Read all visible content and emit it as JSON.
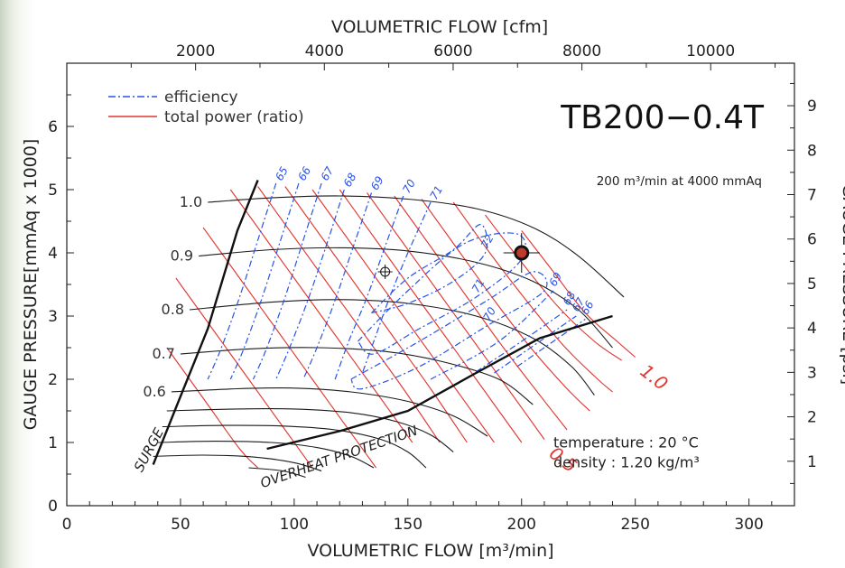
{
  "chart_data": {
    "type": "line",
    "title": "TB200−0.4T",
    "rating_note": "200 m³/min at 4000 mmAq",
    "conditions": [
      "temperature : 20 °C",
      "density : 1.20 kg/m³"
    ],
    "x_bottom": {
      "label": "VOLUMETRIC FLOW [m³/min]",
      "range": [
        0,
        320
      ],
      "ticks": [
        0,
        50,
        100,
        150,
        200,
        250,
        300
      ]
    },
    "x_top": {
      "label": "VOLUMETRIC FLOW [cfm]",
      "ticks": [
        2000,
        4000,
        6000,
        8000,
        10000
      ]
    },
    "y_left": {
      "label": "GAUGE PRESSURE[mmAq x 1000]",
      "range": [
        0,
        7
      ],
      "ticks": [
        0,
        1,
        2,
        3,
        4,
        5,
        6
      ]
    },
    "y_right": {
      "label": "GAUGE PRESSURE [psi]",
      "ticks": [
        1,
        2,
        3,
        4,
        5,
        6,
        7,
        8,
        9
      ]
    },
    "legend": [
      {
        "label": "efficiency",
        "color": "#2952e8",
        "style": "dash-dot"
      },
      {
        "label": "total power (ratio)",
        "color": "#e0352e",
        "style": "solid"
      }
    ],
    "speed_curves": [
      {
        "label": "1.0",
        "points": [
          [
            62,
            4.8
          ],
          [
            90,
            4.87
          ],
          [
            120,
            4.9
          ],
          [
            150,
            4.85
          ],
          [
            180,
            4.7
          ],
          [
            205,
            4.4
          ],
          [
            225,
            3.95
          ],
          [
            245,
            3.3
          ]
        ]
      },
      {
        "label": "0.9",
        "points": [
          [
            58,
            3.95
          ],
          [
            90,
            4.05
          ],
          [
            120,
            4.08
          ],
          [
            150,
            4.03
          ],
          [
            180,
            3.85
          ],
          [
            205,
            3.55
          ],
          [
            225,
            3.1
          ],
          [
            240,
            2.5
          ]
        ]
      },
      {
        "label": "0.8",
        "points": [
          [
            54,
            3.1
          ],
          [
            90,
            3.22
          ],
          [
            120,
            3.26
          ],
          [
            150,
            3.2
          ],
          [
            180,
            3.0
          ],
          [
            205,
            2.65
          ],
          [
            222,
            2.2
          ],
          [
            232,
            1.75
          ]
        ]
      },
      {
        "label": "0.7",
        "points": [
          [
            50,
            2.4
          ],
          [
            80,
            2.48
          ],
          [
            110,
            2.5
          ],
          [
            140,
            2.44
          ],
          [
            165,
            2.28
          ],
          [
            190,
            2.0
          ],
          [
            205,
            1.6
          ]
        ]
      },
      {
        "label": "0.6",
        "points": [
          [
            46,
            1.8
          ],
          [
            75,
            1.85
          ],
          [
            100,
            1.86
          ],
          [
            125,
            1.8
          ],
          [
            150,
            1.65
          ],
          [
            170,
            1.42
          ],
          [
            185,
            1.1
          ]
        ]
      },
      {
        "label": "",
        "points": [
          [
            44,
            1.5
          ],
          [
            75,
            1.53
          ],
          [
            100,
            1.53
          ],
          [
            125,
            1.47
          ],
          [
            145,
            1.33
          ],
          [
            160,
            1.12
          ],
          [
            170,
            0.85
          ]
        ]
      },
      {
        "label": "",
        "points": [
          [
            42,
            1.25
          ],
          [
            70,
            1.27
          ],
          [
            95,
            1.26
          ],
          [
            118,
            1.2
          ],
          [
            138,
            1.05
          ],
          [
            150,
            0.85
          ],
          [
            158,
            0.6
          ]
        ]
      },
      {
        "label": "",
        "points": [
          [
            40,
            1.0
          ],
          [
            65,
            1.02
          ],
          [
            90,
            1.0
          ],
          [
            110,
            0.92
          ],
          [
            125,
            0.78
          ],
          [
            135,
            0.6
          ]
        ]
      },
      {
        "label": "",
        "points": [
          [
            38,
            0.78
          ],
          [
            60,
            0.8
          ],
          [
            82,
            0.77
          ],
          [
            100,
            0.68
          ],
          [
            112,
            0.55
          ]
        ]
      },
      {
        "label": "",
        "points": [
          [
            80,
            0.6
          ],
          [
            95,
            0.55
          ],
          [
            105,
            0.45
          ]
        ]
      }
    ],
    "power_ratio_lines": [
      {
        "label": "",
        "points": [
          [
            72,
            5.0
          ],
          [
            88,
            4.2
          ],
          [
            104,
            3.4
          ],
          [
            120,
            2.6
          ],
          [
            136,
            1.8
          ],
          [
            152,
            1.0
          ]
        ]
      },
      {
        "label": "",
        "points": [
          [
            84,
            5.05
          ],
          [
            100,
            4.25
          ],
          [
            116,
            3.45
          ],
          [
            132,
            2.65
          ],
          [
            148,
            1.85
          ],
          [
            164,
            1.0
          ]
        ]
      },
      {
        "label": "",
        "points": [
          [
            96,
            5.05
          ],
          [
            112,
            4.25
          ],
          [
            128,
            3.45
          ],
          [
            144,
            2.65
          ],
          [
            160,
            1.85
          ],
          [
            176,
            1.0
          ]
        ]
      },
      {
        "label": "",
        "points": [
          [
            108,
            5.0
          ],
          [
            124,
            4.2
          ],
          [
            140,
            3.4
          ],
          [
            156,
            2.6
          ],
          [
            172,
            1.8
          ],
          [
            188,
            1.0
          ]
        ]
      },
      {
        "label": "",
        "points": [
          [
            120,
            5.0
          ],
          [
            136,
            4.2
          ],
          [
            152,
            3.4
          ],
          [
            168,
            2.6
          ],
          [
            184,
            1.8
          ],
          [
            200,
            1.0
          ]
        ]
      },
      {
        "label": "0.5",
        "points": [
          [
            132,
            4.95
          ],
          [
            148,
            4.15
          ],
          [
            164,
            3.35
          ],
          [
            180,
            2.55
          ],
          [
            196,
            1.75
          ],
          [
            210,
            1.05
          ]
        ]
      },
      {
        "label": "",
        "points": [
          [
            144,
            4.9
          ],
          [
            160,
            4.1
          ],
          [
            176,
            3.3
          ],
          [
            192,
            2.5
          ],
          [
            208,
            1.75
          ],
          [
            220,
            1.2
          ]
        ]
      },
      {
        "label": "",
        "points": [
          [
            156,
            4.85
          ],
          [
            172,
            4.05
          ],
          [
            188,
            3.25
          ],
          [
            204,
            2.5
          ],
          [
            220,
            1.85
          ],
          [
            230,
            1.5
          ]
        ]
      },
      {
        "label": "",
        "points": [
          [
            170,
            4.8
          ],
          [
            186,
            4.0
          ],
          [
            202,
            3.25
          ],
          [
            218,
            2.55
          ],
          [
            232,
            2.05
          ],
          [
            240,
            1.8
          ]
        ]
      },
      {
        "label": "",
        "points": [
          [
            184,
            4.6
          ],
          [
            200,
            3.85
          ],
          [
            216,
            3.15
          ],
          [
            232,
            2.6
          ],
          [
            244,
            2.3
          ]
        ]
      },
      {
        "label": "1.0",
        "points": [
          [
            200,
            4.35
          ],
          [
            214,
            3.7
          ],
          [
            228,
            3.05
          ],
          [
            242,
            2.6
          ],
          [
            250,
            2.35
          ]
        ]
      },
      {
        "label": "",
        "points": [
          [
            60,
            4.4
          ],
          [
            76,
            3.6
          ],
          [
            92,
            2.8
          ],
          [
            108,
            2.0
          ],
          [
            124,
            1.2
          ],
          [
            136,
            0.6
          ]
        ]
      },
      {
        "label": "",
        "points": [
          [
            48,
            3.6
          ],
          [
            64,
            2.8
          ],
          [
            80,
            2.0
          ],
          [
            96,
            1.2
          ],
          [
            108,
            0.6
          ]
        ]
      },
      {
        "label": "",
        "points": [
          [
            44,
            2.5
          ],
          [
            60,
            1.7
          ],
          [
            76,
            0.9
          ],
          [
            84,
            0.6
          ]
        ]
      }
    ],
    "efficiency_curves": [
      {
        "label": "65",
        "points": [
          [
            92,
            5.1
          ],
          [
            84,
            4.2
          ],
          [
            76,
            3.3
          ],
          [
            68,
            2.5
          ],
          [
            62,
            2.0
          ]
        ]
      },
      {
        "label": "66",
        "points": [
          [
            102,
            5.1
          ],
          [
            94,
            4.2
          ],
          [
            86,
            3.3
          ],
          [
            78,
            2.5
          ],
          [
            72,
            2.0
          ]
        ]
      },
      {
        "label": "67",
        "points": [
          [
            112,
            5.1
          ],
          [
            104,
            4.2
          ],
          [
            96,
            3.3
          ],
          [
            88,
            2.5
          ],
          [
            82,
            2.0
          ]
        ]
      },
      {
        "label": "68",
        "points": [
          [
            122,
            5.0
          ],
          [
            114,
            4.1
          ],
          [
            106,
            3.25
          ],
          [
            98,
            2.5
          ],
          [
            92,
            2.0
          ]
        ]
      },
      {
        "label": "69",
        "points": [
          [
            134,
            4.95
          ],
          [
            126,
            4.1
          ],
          [
            118,
            3.25
          ],
          [
            110,
            2.5
          ],
          [
            104,
            2.0
          ]
        ]
      },
      {
        "label": "70",
        "points": [
          [
            148,
            4.9
          ],
          [
            140,
            4.1
          ],
          [
            132,
            3.3
          ],
          [
            124,
            2.6
          ],
          [
            118,
            2.0
          ]
        ]
      },
      {
        "label": "71",
        "points": [
          [
            160,
            4.8
          ],
          [
            150,
            4.0
          ],
          [
            142,
            3.3
          ],
          [
            136,
            2.7
          ],
          [
            130,
            2.1
          ]
        ]
      },
      {
        "label": "72",
        "points": [
          [
            134,
            3.05
          ],
          [
            150,
            3.6
          ],
          [
            170,
            4.05
          ],
          [
            182,
            4.45
          ],
          [
            184,
            4.0
          ],
          [
            170,
            3.55
          ],
          [
            150,
            3.2
          ],
          [
            134,
            3.05
          ]
        ]
      },
      {
        "label": "71",
        "points": [
          [
            128,
            2.6
          ],
          [
            150,
            3.4
          ],
          [
            175,
            4.15
          ],
          [
            198,
            4.3
          ],
          [
            200,
            3.9
          ],
          [
            180,
            3.3
          ],
          [
            155,
            2.8
          ],
          [
            135,
            2.4
          ],
          [
            128,
            2.6
          ]
        ]
      },
      {
        "label": "70",
        "points": [
          [
            125,
            2.0
          ],
          [
            155,
            2.6
          ],
          [
            185,
            3.25
          ],
          [
            205,
            3.7
          ],
          [
            210,
            3.4
          ],
          [
            185,
            2.85
          ],
          [
            155,
            2.2
          ],
          [
            130,
            1.85
          ],
          [
            125,
            2.0
          ]
        ]
      },
      {
        "label": "69",
        "points": [
          [
            160,
            2.0
          ],
          [
            190,
            2.6
          ],
          [
            214,
            3.4
          ]
        ]
      },
      {
        "label": "68",
        "points": [
          [
            175,
            2.0
          ],
          [
            200,
            2.6
          ],
          [
            220,
            3.1
          ]
        ]
      },
      {
        "label": "67",
        "points": [
          [
            188,
            2.1
          ],
          [
            208,
            2.6
          ],
          [
            224,
            3.0
          ]
        ]
      },
      {
        "label": "66",
        "points": [
          [
            198,
            2.2
          ],
          [
            214,
            2.6
          ],
          [
            228,
            2.95
          ]
        ]
      }
    ],
    "limits": [
      {
        "label": "SURGE",
        "points": [
          [
            38,
            0.65
          ],
          [
            48,
            1.55
          ],
          [
            62,
            2.8
          ],
          [
            75,
            4.35
          ],
          [
            84,
            5.15
          ]
        ]
      },
      {
        "label": "OVERHEAT PROTECTION",
        "points": [
          [
            88,
            0.9
          ],
          [
            120,
            1.18
          ],
          [
            150,
            1.5
          ],
          [
            180,
            2.1
          ],
          [
            208,
            2.65
          ],
          [
            240,
            3.0
          ]
        ]
      }
    ],
    "rated_point": {
      "x": 200,
      "y": 4.0
    },
    "secondary_point": {
      "x": 140,
      "y": 3.7
    },
    "grid": false,
    "legend_position": "top-left"
  }
}
